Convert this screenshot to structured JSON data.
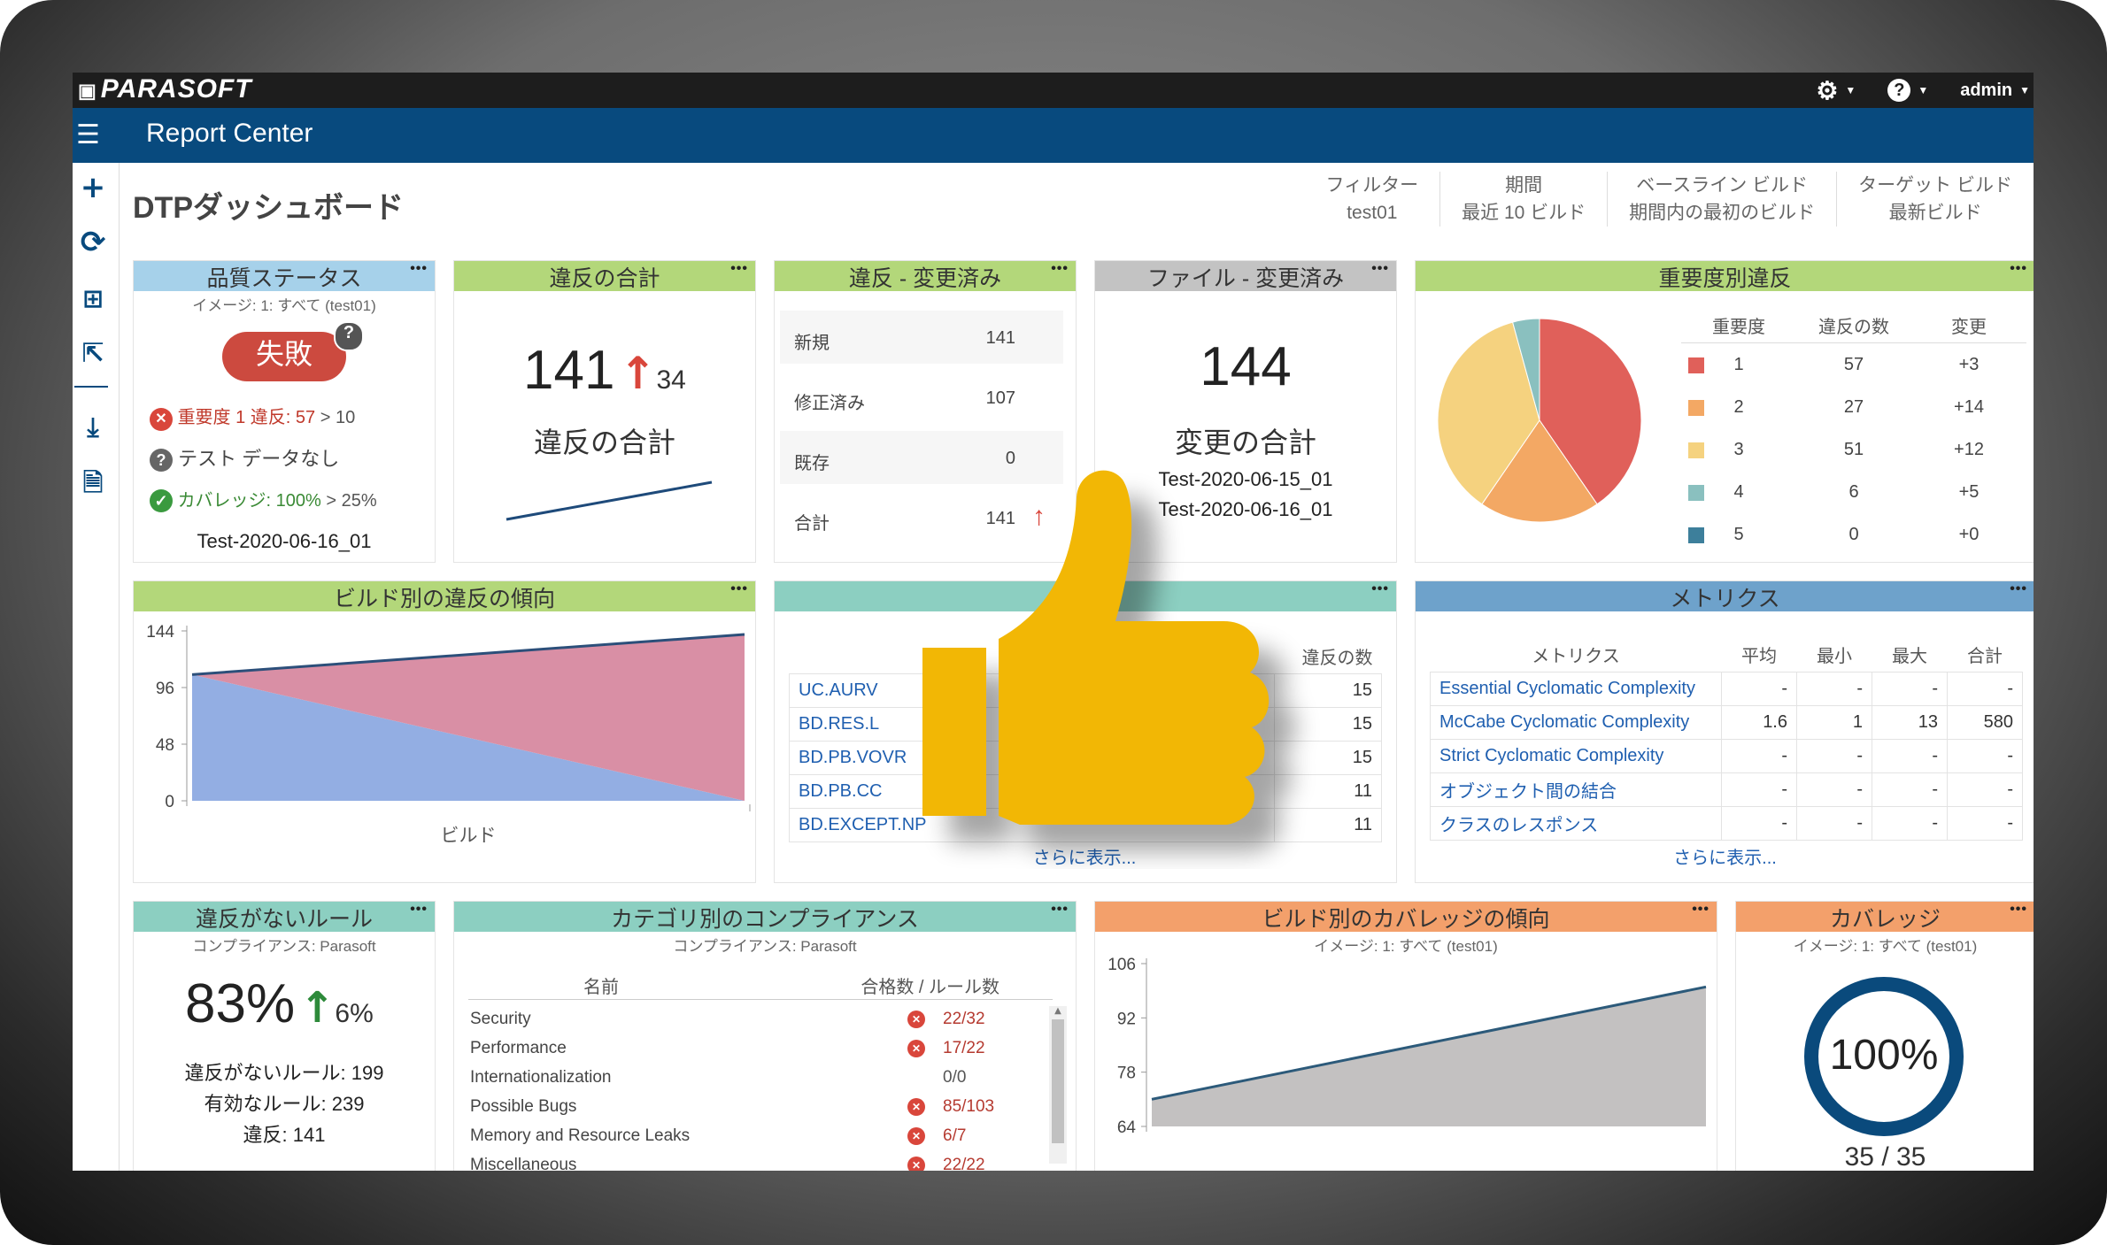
{
  "topbar": {
    "logo": "PARASOFT",
    "user": "admin"
  },
  "navbar": {
    "title": "Report Center"
  },
  "page_title": "DTPダッシュボード",
  "filters": [
    {
      "label": "フィルター",
      "value": "test01"
    },
    {
      "label": "期間",
      "value": "最近 10 ビルド"
    },
    {
      "label": "ベースライン ビルド",
      "value": "期間内の最初のビルド"
    },
    {
      "label": "ターゲット ビルド",
      "value": "最新ビルド"
    }
  ],
  "quality": {
    "title": "品質ステータス",
    "image": "イメージ: 1: すべて (test01)",
    "status": "失敗",
    "row1_label": "重要度 1 違反: 57",
    "row1_rest": " > 10",
    "row2": "テスト データなし",
    "row3_label": "カバレッジ: 100%",
    "row3_rest": " > 25%",
    "build": "Test-2020-06-16_01"
  },
  "violations_total": {
    "title": "違反の合計",
    "value": "141",
    "delta": "34",
    "label": "違反の合計"
  },
  "violations_changed": {
    "title": "違反 - 変更済み",
    "rows": [
      {
        "label": "新規",
        "value": "141"
      },
      {
        "label": "修正済み",
        "value": "107"
      },
      {
        "label": "既存",
        "value": "0"
      },
      {
        "label": "合計",
        "value": "141"
      }
    ]
  },
  "files_changed": {
    "title": "ファイル - 変更済み",
    "value": "144",
    "label": "変更の合計",
    "builds": [
      "Test-2020-06-15_01",
      "Test-2020-06-16_01"
    ]
  },
  "severity": {
    "title": "重要度別違反",
    "headers": [
      "重要度",
      "違反の数",
      "変更"
    ],
    "rows": [
      {
        "sev": "1",
        "count": "57",
        "change": "+3",
        "color": "#e0605a"
      },
      {
        "sev": "2",
        "count": "27",
        "change": "+14",
        "color": "#f3a864"
      },
      {
        "sev": "3",
        "count": "51",
        "change": "+12",
        "color": "#f5d27f"
      },
      {
        "sev": "4",
        "count": "6",
        "change": "+5",
        "color": "#8ac0bf"
      },
      {
        "sev": "5",
        "count": "0",
        "change": "+0",
        "color": "#3d7f9b"
      }
    ]
  },
  "trend": {
    "title": "ビルド別の違反の傾向",
    "xlabel": "ビルド"
  },
  "rules_table": {
    "header": "違反の数",
    "rows": [
      {
        "name": "UC.AURV",
        "count": "15"
      },
      {
        "name": "BD.RES.L",
        "count": "15"
      },
      {
        "name": "BD.PB.VOVR",
        "count": "15"
      },
      {
        "name": "BD.PB.CC",
        "count": "11"
      },
      {
        "name": "BD.EXCEPT.NP",
        "count": "11"
      }
    ],
    "more": "さらに表示..."
  },
  "metrics": {
    "title": "メトリクス",
    "headers": [
      "メトリクス",
      "平均",
      "最小",
      "最大",
      "合計"
    ],
    "rows": [
      {
        "name": "Essential Cyclomatic Complexity",
        "avg": "-",
        "min": "-",
        "max": "-",
        "sum": "-"
      },
      {
        "name": "McCabe Cyclomatic Complexity",
        "avg": "1.6",
        "min": "1",
        "max": "13",
        "sum": "580"
      },
      {
        "name": "Strict Cyclomatic Complexity",
        "avg": "-",
        "min": "-",
        "max": "-",
        "sum": "-"
      },
      {
        "name": "オブジェクト間の結合",
        "avg": "-",
        "min": "-",
        "max": "-",
        "sum": "-"
      },
      {
        "name": "クラスのレスポンス",
        "avg": "-",
        "min": "-",
        "max": "-",
        "sum": "-"
      }
    ],
    "more": "さらに表示..."
  },
  "no_violation": {
    "title": "違反がないルール",
    "sub": "コンプライアンス: Parasoft",
    "pct": "83%",
    "delta": "6%",
    "lines": [
      "違反がないルール: 199",
      "有効なルール: 239",
      "違反: 141"
    ]
  },
  "compliance": {
    "title": "カテゴリ別のコンプライアンス",
    "sub": "コンプライアンス: Parasoft",
    "headers": [
      "名前",
      "合格数 / ルール数"
    ],
    "rows": [
      {
        "name": "Security",
        "value": "22/32",
        "fail": true
      },
      {
        "name": "Performance",
        "value": "17/22",
        "fail": true
      },
      {
        "name": "Internationalization",
        "value": "0/0",
        "fail": false
      },
      {
        "name": "Possible Bugs",
        "value": "85/103",
        "fail": true
      },
      {
        "name": "Memory and Resource Leaks",
        "value": "6/7",
        "fail": true
      },
      {
        "name": "Miscellaneous",
        "value": "22/22",
        "fail": true
      }
    ]
  },
  "coverage_trend": {
    "title": "ビルド別のカバレッジの傾向",
    "sub": "イメージ: 1: すべて (test01)"
  },
  "coverage": {
    "title": "カバレッジ",
    "sub": "イメージ: 1: すべて (test01)",
    "pct": "100%",
    "ratio": "35 / 35",
    "level": 1.0
  },
  "chart_data": [
    {
      "type": "pie",
      "title": "重要度別違反",
      "categories": [
        "1",
        "2",
        "3",
        "4",
        "5"
      ],
      "values": [
        57,
        27,
        51,
        6,
        0
      ]
    },
    {
      "type": "area",
      "title": "ビルド別の違反の傾向",
      "xlabel": "ビルド",
      "yticks": [
        "0",
        "48",
        "96",
        "144"
      ],
      "ylim": [
        0,
        144
      ],
      "series": [
        {
          "values": [
            107,
            0
          ]
        },
        {
          "values": [
            107,
            141
          ]
        }
      ]
    },
    {
      "type": "area",
      "title": "ビルド別のカバレッジの傾向",
      "yticks": [
        "64",
        "78",
        "92",
        "106"
      ],
      "ylim": [
        64,
        106
      ],
      "series": [
        {
          "values": [
            71,
            100
          ]
        }
      ]
    }
  ]
}
